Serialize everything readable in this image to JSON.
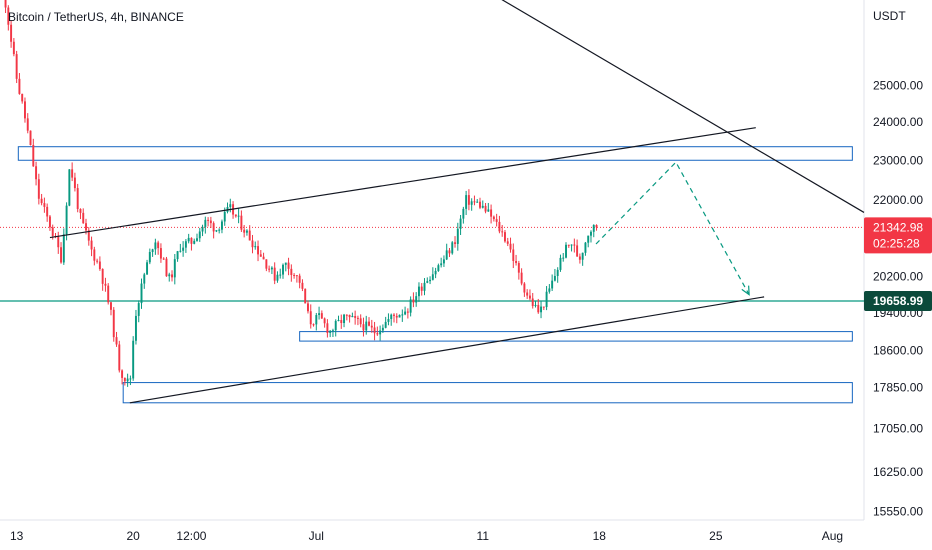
{
  "chart_data": {
    "type": "candlestick",
    "title": "Bitcoin / TetherUS, 4h, BINANCE",
    "currency": "USDT",
    "x_tick_labels": [
      {
        "label": "13",
        "day": 13
      },
      {
        "label": "20",
        "day": 20
      },
      {
        "label": "12:00",
        "day": 23.5
      },
      {
        "label": "Jul",
        "day": 31
      },
      {
        "label": "11",
        "day": 41
      },
      {
        "label": "18",
        "day": 48
      },
      {
        "label": "25",
        "day": 55
      },
      {
        "label": "Aug",
        "day": 62
      }
    ],
    "y_tick_labels": [
      "25000.00",
      "24000.00",
      "23000.00",
      "22000.00",
      "20200.00",
      "19400.00",
      "18600.00",
      "17850.00",
      "17050.00",
      "16250.00",
      "15550.00"
    ],
    "y_tick_values": [
      25000,
      24000,
      23000,
      22000,
      20200,
      19400,
      18600,
      17850,
      17050,
      16250,
      15550
    ],
    "y_axis": {
      "scale": "log",
      "top_value": 27500,
      "bottom_value": 15400
    },
    "x_axis": {
      "start_day": 12.0,
      "end_day": 63.9
    },
    "current_price": {
      "label": "21342.98",
      "value": 21342.98,
      "countdown": "02:25:28",
      "color": "#f23645"
    },
    "horizontal_line": {
      "label": "19658.99",
      "value": 19658.99,
      "color": "#089981"
    },
    "candle_colors": {
      "up": "#089981",
      "down": "#f23645"
    },
    "price_path": [
      [
        12.0,
        28500
      ],
      [
        13.0,
        25200
      ],
      [
        13.6,
        23900
      ],
      [
        14.3,
        22100
      ],
      [
        15.0,
        21400
      ],
      [
        15.7,
        20600
      ],
      [
        16.2,
        22900
      ],
      [
        16.8,
        21600
      ],
      [
        17.5,
        20800
      ],
      [
        18.0,
        20400
      ],
      [
        18.6,
        19500
      ],
      [
        19.2,
        18200
      ],
      [
        19.8,
        17900
      ],
      [
        20.1,
        19300
      ],
      [
        20.7,
        20300
      ],
      [
        21.3,
        21100
      ],
      [
        22.2,
        20100
      ],
      [
        22.8,
        20900
      ],
      [
        23.5,
        21000
      ],
      [
        24.4,
        21500
      ],
      [
        25.0,
        21300
      ],
      [
        25.8,
        21800
      ],
      [
        26.5,
        21400
      ],
      [
        27.5,
        20800
      ],
      [
        28.5,
        20200
      ],
      [
        29.2,
        20500
      ],
      [
        30.0,
        20100
      ],
      [
        30.6,
        19200
      ],
      [
        31.2,
        19300
      ],
      [
        31.8,
        19000
      ],
      [
        32.7,
        19300
      ],
      [
        33.5,
        19200
      ],
      [
        34.5,
        19000
      ],
      [
        35.5,
        19300
      ],
      [
        36.5,
        19500
      ],
      [
        37.5,
        20100
      ],
      [
        38.5,
        20500
      ],
      [
        39.3,
        21000
      ],
      [
        40.0,
        22000
      ],
      [
        40.8,
        21900
      ],
      [
        41.5,
        21600
      ],
      [
        42.5,
        21000
      ],
      [
        43.2,
        20200
      ],
      [
        43.8,
        19700
      ],
      [
        44.4,
        19400
      ],
      [
        45.0,
        19900
      ],
      [
        45.8,
        20700
      ],
      [
        46.3,
        21000
      ],
      [
        46.8,
        20600
      ],
      [
        47.4,
        21300
      ],
      [
        47.9,
        21342.98
      ]
    ],
    "boxes": [
      {
        "day1": 13.1,
        "day2": 63.2,
        "high": 23350,
        "low": 23000,
        "color": "#1565c0"
      },
      {
        "day1": 30.0,
        "day2": 63.2,
        "high": 19000,
        "low": 18800,
        "color": "#1565c0"
      },
      {
        "day1": 19.4,
        "day2": 63.2,
        "high": 17950,
        "low": 17550,
        "color": "#1565c0"
      }
    ],
    "trend_lines": [
      {
        "day1": 28.3,
        "value1": 32000,
        "day2": 63.9,
        "value2": 21700,
        "color": "#131722"
      },
      {
        "day1": 15.0,
        "value1": 21100,
        "day2": 57.4,
        "value2": 23850,
        "color": "#131722"
      },
      {
        "day1": 19.8,
        "value1": 17550,
        "day2": 57.9,
        "value2": 19750,
        "color": "#131722"
      }
    ],
    "projection_path": {
      "color": "#089981",
      "points": [
        [
          47.8,
          20950
        ],
        [
          52.6,
          22950
        ],
        [
          57.0,
          19800
        ]
      ]
    }
  }
}
